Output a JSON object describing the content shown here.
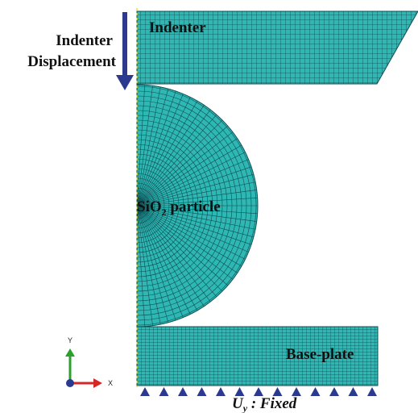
{
  "indenter": {
    "label": "Indenter"
  },
  "arrow_label": [
    "Indenter",
    "Displacement"
  ],
  "particle": {
    "label": "SiO",
    "subscript": "2",
    "label_rest": " particle"
  },
  "base_plate": {
    "label": "Base-plate"
  },
  "boundary_condition": {
    "symbol": "U",
    "subscript": "y",
    "rest": " : Fixed"
  },
  "triad": {
    "x": "X",
    "y": "Y"
  }
}
